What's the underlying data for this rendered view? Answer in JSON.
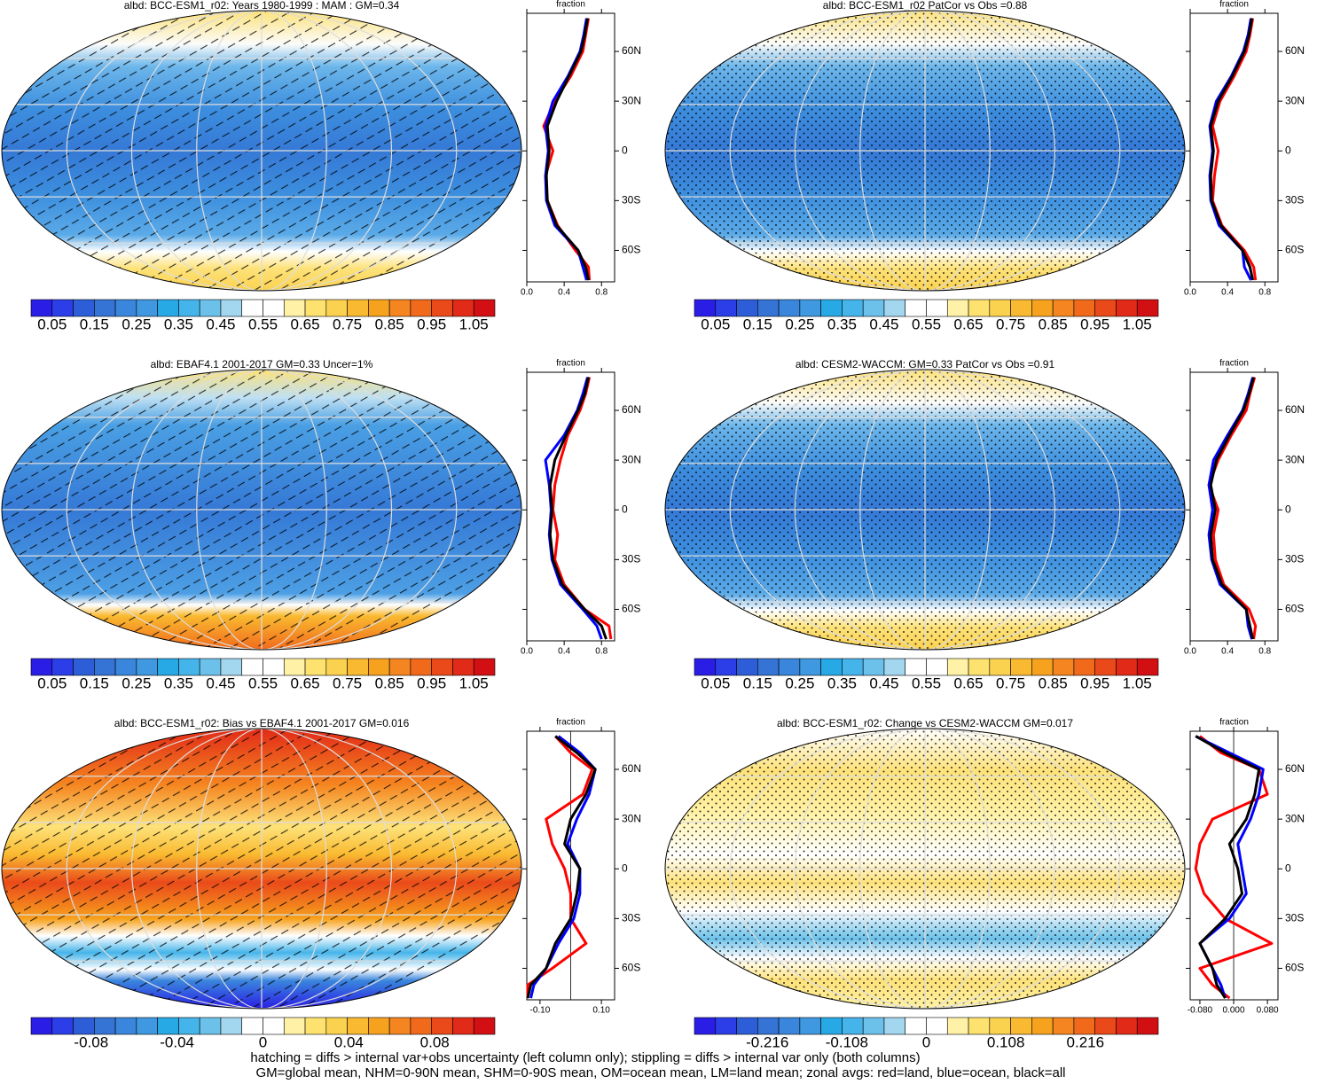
{
  "chart_data": [
    {
      "type": "line",
      "title": "albd: BCC-ESM1_r02: Years 1980-1999 : MAM : GM=0.34",
      "xlabel": "fraction",
      "map": "mean",
      "hatch": "lines",
      "lat": [
        80,
        70,
        60,
        45,
        30,
        15,
        0,
        -15,
        -30,
        -45,
        -60,
        -70,
        -78
      ],
      "series": [
        {
          "color": "#ff0000",
          "values": [
            0.66,
            0.63,
            0.6,
            0.47,
            0.3,
            0.18,
            0.28,
            0.2,
            0.22,
            0.33,
            0.52,
            0.66,
            0.67
          ]
        },
        {
          "color": "#0000ff",
          "values": [
            0.64,
            0.61,
            0.57,
            0.44,
            0.28,
            0.2,
            0.23,
            0.2,
            0.21,
            0.3,
            0.55,
            0.6,
            0.64
          ]
        },
        {
          "color": "#000000",
          "values": [
            0.65,
            0.62,
            0.58,
            0.45,
            0.32,
            0.22,
            0.24,
            0.21,
            0.22,
            0.32,
            0.55,
            0.63,
            0.66
          ]
        }
      ],
      "xlim": [
        0,
        0.94
      ],
      "xticks": [
        {
          "value": 0,
          "label": "0.0"
        },
        0.4,
        0.8
      ],
      "ylim": [
        -79,
        83
      ],
      "yticks": [
        {
          "value": 60,
          "label": "60N"
        },
        {
          "value": 30,
          "label": "30N"
        },
        0,
        {
          "value": -30,
          "label": "30S"
        },
        {
          "value": -60,
          "label": "60S"
        }
      ],
      "colorbar": {
        "lim": [
          0,
          1.1
        ],
        "ticks": [
          0.05,
          0.15,
          0.25,
          0.35,
          0.45,
          0.55,
          0.65,
          0.75,
          0.85,
          0.95,
          1.05
        ]
      }
    },
    {
      "type": "line",
      "title": "albd: BCC-ESM1_r02 PatCor vs Obs =0.88",
      "xlabel": "fraction",
      "map": "mean",
      "hatch": "dots",
      "lat": [
        80,
        70,
        60,
        45,
        30,
        15,
        0,
        -15,
        -30,
        -45,
        -60,
        -70,
        -78
      ],
      "series": [
        {
          "color": "#ff0000",
          "values": [
            0.67,
            0.64,
            0.6,
            0.47,
            0.32,
            0.24,
            0.3,
            0.26,
            0.24,
            0.34,
            0.58,
            0.68,
            0.7
          ]
        },
        {
          "color": "#0000ff",
          "values": [
            0.65,
            0.62,
            0.57,
            0.44,
            0.28,
            0.21,
            0.24,
            0.21,
            0.22,
            0.31,
            0.56,
            0.58,
            0.65
          ]
        },
        {
          "color": "#000000",
          "values": [
            0.66,
            0.63,
            0.58,
            0.45,
            0.3,
            0.22,
            0.25,
            0.22,
            0.23,
            0.33,
            0.56,
            0.64,
            0.67
          ]
        }
      ],
      "xlim": [
        0,
        0.94
      ],
      "xticks": [
        {
          "value": 0,
          "label": "0.0"
        },
        0.4,
        0.8
      ],
      "ylim": [
        -79,
        83
      ],
      "yticks": [
        {
          "value": 60,
          "label": "60N"
        },
        {
          "value": 30,
          "label": "30N"
        },
        0,
        {
          "value": -30,
          "label": "30S"
        },
        {
          "value": -60,
          "label": "60S"
        }
      ],
      "colorbar": {
        "lim": [
          0,
          1.1
        ],
        "ticks": [
          0.05,
          0.15,
          0.25,
          0.35,
          0.45,
          0.55,
          0.65,
          0.75,
          0.85,
          0.95,
          1.05
        ]
      }
    },
    {
      "type": "line",
      "title": "albd: EBAF4.1 2001-2017 GM=0.33 Uncer=1%",
      "xlabel": "fraction",
      "map": "obs",
      "hatch": "lines",
      "lat": [
        80,
        70,
        60,
        45,
        30,
        15,
        0,
        -15,
        -30,
        -45,
        -60,
        -70,
        -78
      ],
      "series": [
        {
          "color": "#ff0000",
          "values": [
            0.67,
            0.63,
            0.57,
            0.44,
            0.36,
            0.3,
            0.28,
            0.33,
            0.3,
            0.4,
            0.62,
            0.88,
            0.9
          ]
        },
        {
          "color": "#0000ff",
          "values": [
            0.65,
            0.6,
            0.54,
            0.4,
            0.2,
            0.24,
            0.26,
            0.24,
            0.27,
            0.36,
            0.6,
            0.75,
            0.8
          ]
        },
        {
          "color": "#000000",
          "values": [
            0.66,
            0.62,
            0.55,
            0.42,
            0.3,
            0.25,
            0.27,
            0.25,
            0.28,
            0.38,
            0.62,
            0.8,
            0.85
          ]
        }
      ],
      "xlim": [
        0,
        0.94
      ],
      "xticks": [
        {
          "value": 0,
          "label": "0.0"
        },
        0.4,
        0.8
      ],
      "ylim": [
        -79,
        83
      ],
      "yticks": [
        {
          "value": 60,
          "label": "60N"
        },
        {
          "value": 30,
          "label": "30N"
        },
        0,
        {
          "value": -30,
          "label": "30S"
        },
        {
          "value": -60,
          "label": "60S"
        }
      ],
      "colorbar": {
        "lim": [
          0,
          1.1
        ],
        "ticks": [
          0.05,
          0.15,
          0.25,
          0.35,
          0.45,
          0.55,
          0.65,
          0.75,
          0.85,
          0.95,
          1.05
        ]
      }
    },
    {
      "type": "line",
      "title": "albd: CESM2-WACCM: GM=0.33 PatCor vs Obs =0.91",
      "xlabel": "fraction",
      "map": "mean",
      "hatch": "dots",
      "lat": [
        80,
        70,
        60,
        45,
        30,
        15,
        0,
        -15,
        -30,
        -45,
        -60,
        -70,
        -78
      ],
      "series": [
        {
          "color": "#ff0000",
          "values": [
            0.69,
            0.64,
            0.6,
            0.44,
            0.3,
            0.2,
            0.3,
            0.25,
            0.27,
            0.36,
            0.63,
            0.7,
            0.68
          ]
        },
        {
          "color": "#0000ff",
          "values": [
            0.67,
            0.62,
            0.56,
            0.4,
            0.25,
            0.2,
            0.24,
            0.2,
            0.23,
            0.32,
            0.6,
            0.62,
            0.66
          ]
        },
        {
          "color": "#000000",
          "values": [
            0.68,
            0.63,
            0.57,
            0.42,
            0.28,
            0.22,
            0.27,
            0.22,
            0.24,
            0.34,
            0.6,
            0.64,
            0.67
          ]
        }
      ],
      "xlim": [
        0,
        0.94
      ],
      "xticks": [
        {
          "value": 0,
          "label": "0.0"
        },
        0.4,
        0.8
      ],
      "ylim": [
        -79,
        83
      ],
      "yticks": [
        {
          "value": 60,
          "label": "60N"
        },
        {
          "value": 30,
          "label": "30N"
        },
        0,
        {
          "value": -30,
          "label": "30S"
        },
        {
          "value": -60,
          "label": "60S"
        }
      ],
      "colorbar": {
        "lim": [
          0,
          1.1
        ],
        "ticks": [
          0.05,
          0.15,
          0.25,
          0.35,
          0.45,
          0.55,
          0.65,
          0.75,
          0.85,
          0.95,
          1.05
        ]
      }
    },
    {
      "type": "line",
      "title": "albd: BCC-ESM1_r02: Bias vs EBAF4.1 2001-2017 GM=0.016",
      "xlabel": "fraction",
      "map": "bias",
      "hatch": "lines",
      "zero_line": true,
      "lat": [
        80,
        70,
        60,
        45,
        30,
        15,
        0,
        -15,
        -30,
        -45,
        -60,
        -70,
        -78
      ],
      "series": [
        {
          "color": "#ff0000",
          "values": [
            -0.05,
            0.0,
            0.07,
            0.04,
            -0.08,
            -0.06,
            -0.02,
            0.0,
            0.0,
            0.05,
            -0.06,
            -0.14,
            -0.14
          ]
        },
        {
          "color": "#0000ff",
          "values": [
            -0.04,
            0.03,
            0.08,
            0.06,
            0.02,
            -0.01,
            0.03,
            0.03,
            0.01,
            -0.04,
            -0.08,
            -0.12,
            -0.13
          ]
        },
        {
          "color": "#000000",
          "values": [
            -0.05,
            0.02,
            0.08,
            0.05,
            0.0,
            -0.02,
            0.03,
            0.02,
            0.0,
            -0.05,
            -0.08,
            -0.13,
            -0.14
          ]
        }
      ],
      "xlim": [
        -0.143,
        0.143
      ],
      "xticks": [
        {
          "value": -0.1,
          "label": "-0.10"
        },
        {
          "value": 0.1,
          "label": "0.10"
        }
      ],
      "ylim": [
        -79,
        83
      ],
      "yticks": [
        {
          "value": 60,
          "label": "60N"
        },
        {
          "value": 30,
          "label": "30N"
        },
        0,
        {
          "value": -30,
          "label": "30S"
        },
        {
          "value": -60,
          "label": "60S"
        }
      ],
      "colorbar": {
        "lim": [
          -0.108,
          0.108
        ],
        "ticks": [
          -0.08,
          -0.04,
          0,
          0.04,
          0.08
        ]
      }
    },
    {
      "type": "line",
      "title": "albd: BCC-ESM1_r02: Change vs CESM2-WACCM GM=0.017",
      "xlabel": "fraction",
      "map": "change",
      "hatch": "dots",
      "zero_line": true,
      "lat": [
        80,
        70,
        60,
        45,
        30,
        15,
        0,
        -15,
        -30,
        -45,
        -60,
        -70,
        -78
      ],
      "series": [
        {
          "color": "#ff0000",
          "values": [
            -0.08,
            -0.03,
            0.06,
            0.08,
            -0.05,
            -0.08,
            -0.09,
            -0.07,
            -0.02,
            0.09,
            -0.08,
            -0.05,
            -0.01
          ]
        },
        {
          "color": "#0000ff",
          "values": [
            -0.09,
            -0.01,
            0.07,
            0.06,
            0.04,
            0.01,
            0.02,
            0.03,
            -0.01,
            -0.08,
            -0.05,
            -0.03,
            -0.02
          ]
        },
        {
          "color": "#000000",
          "values": [
            -0.09,
            -0.02,
            0.06,
            0.05,
            0.03,
            -0.01,
            0.01,
            0.02,
            -0.02,
            -0.08,
            -0.05,
            -0.04,
            -0.02
          ]
        }
      ],
      "xlim": [
        -0.103,
        0.105
      ],
      "xticks": [
        {
          "value": -0.08,
          "label": "-0.080"
        },
        {
          "value": 0,
          "label": "0.000"
        },
        {
          "value": 0.08,
          "label": "0.080"
        }
      ],
      "ylim": [
        -79,
        83
      ],
      "yticks": [
        {
          "value": 60,
          "label": "60N"
        },
        {
          "value": 30,
          "label": "30N"
        },
        0,
        {
          "value": -30,
          "label": "30S"
        },
        {
          "value": -60,
          "label": "60S"
        }
      ],
      "colorbar": {
        "lim": [
          -0.315,
          0.315
        ],
        "ticks": [
          -0.216,
          -0.108,
          0,
          0.108,
          0.216
        ]
      }
    }
  ],
  "colorbar_colors": [
    "#2a1ee6",
    "#2b3ee8",
    "#2d5ed8",
    "#3573d4",
    "#3a86dc",
    "#3f98e0",
    "#27a9e6",
    "#45b4ea",
    "#6cc1ea",
    "#a3d6ef",
    "#ffffff",
    "#ffffff",
    "#fff2a6",
    "#fde270",
    "#fbd24f",
    "#f9b930",
    "#f7a21e",
    "#f58520",
    "#f16a1c",
    "#ea4a1a",
    "#e22a18",
    "#d20f12"
  ],
  "footer": [
    "hatching = diffs > internal var+obs uncertainty (left column only); stippling = diffs > internal var only (both columns)",
    "GM=global mean, NHM=0-90N mean, SHM=0-90S mean, OM=ocean mean, LM=land mean; zonal avgs: red=land, blue=ocean, black=all"
  ]
}
